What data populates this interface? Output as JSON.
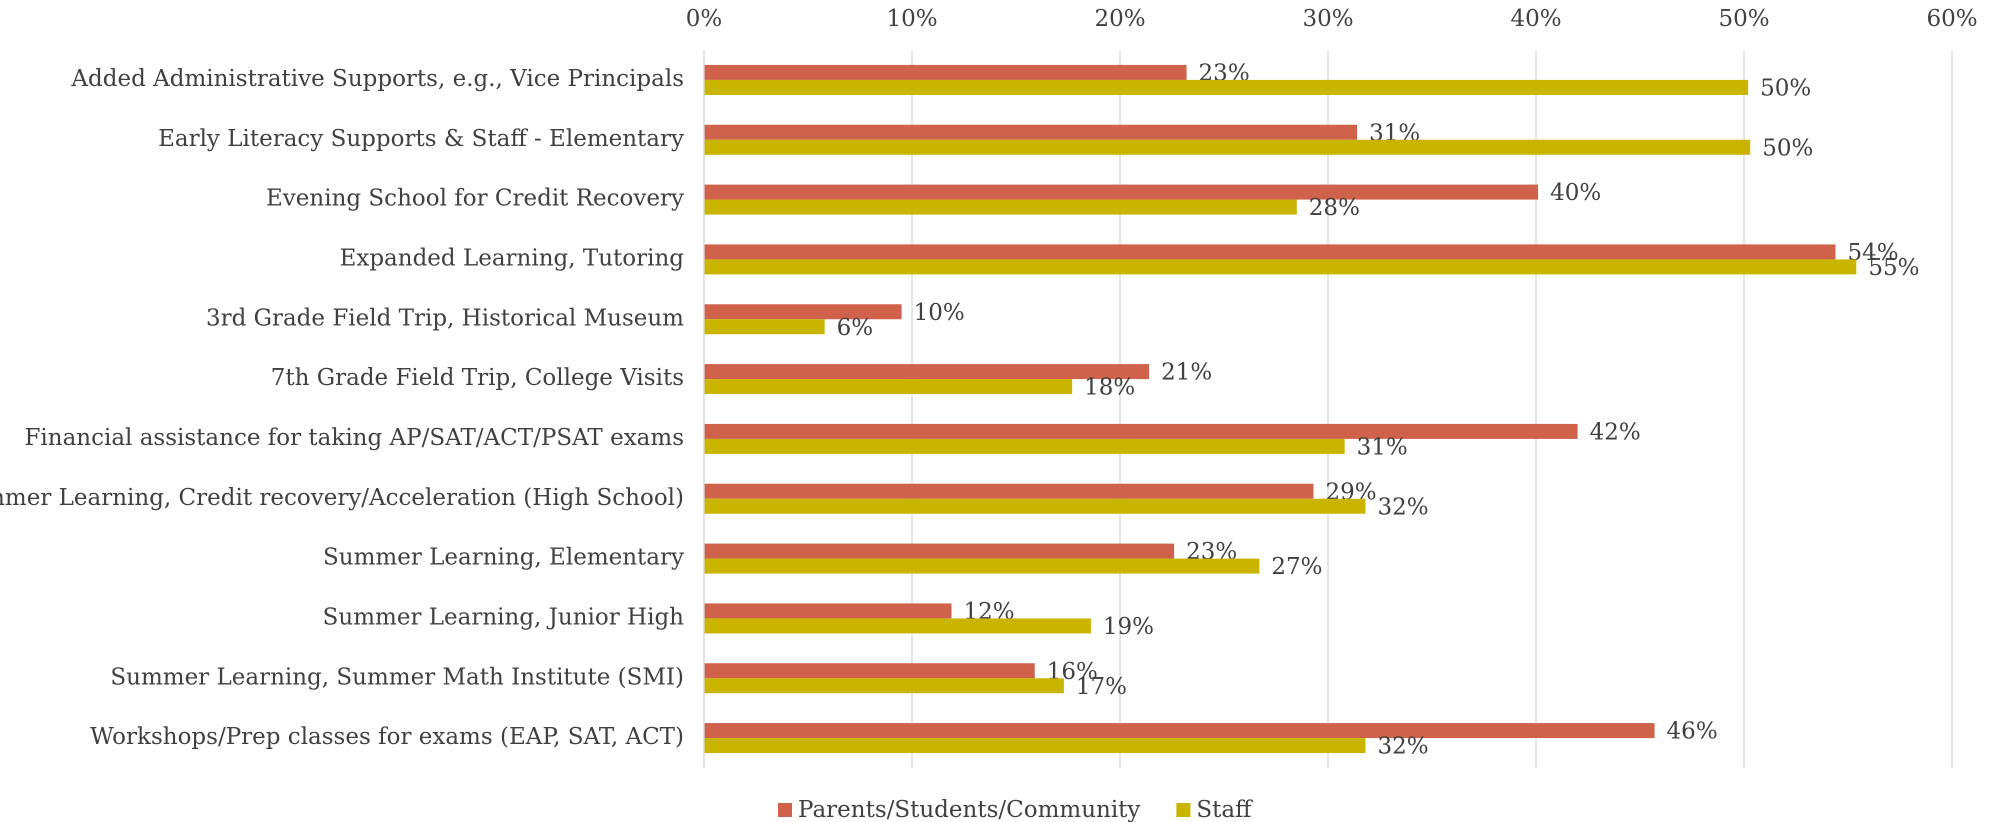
{
  "chart_data": {
    "type": "barh",
    "categories": [
      "Added Administrative Supports, e.g., Vice Principals",
      "Early Literacy Supports & Staff - Elementary",
      "Evening School for Credit Recovery",
      "Expanded Learning, Tutoring",
      "3rd Grade Field Trip, Historical Museum",
      "7th Grade Field Trip, College Visits",
      "Financial assistance for taking AP/SAT/ACT/PSAT exams",
      "Summer Learning, Credit recovery/Acceleration (High School)",
      "Summer Learning, Elementary",
      "Summer Learning, Junior High",
      "Summer Learning, Summer Math Institute (SMI)",
      "Workshops/Prep classes for exams (EAP, SAT, ACT)"
    ],
    "series": [
      {
        "name": "Parents/Students/Community",
        "color": "#d0614a",
        "values": [
          23.2,
          31.4,
          40.1,
          54.4,
          9.5,
          21.4,
          42.0,
          29.3,
          22.6,
          11.9,
          15.9,
          45.7
        ],
        "value_labels": [
          "23%",
          "31%",
          "40%",
          "54%",
          "10%",
          "21%",
          "42%",
          "29%",
          "23%",
          "12%",
          "16%",
          "46%"
        ]
      },
      {
        "name": "Staff",
        "color": "#c9b400",
        "values": [
          50.2,
          50.3,
          28.5,
          55.4,
          5.8,
          17.7,
          30.8,
          31.8,
          26.7,
          18.6,
          17.3,
          31.8
        ],
        "value_labels": [
          "50%",
          "50%",
          "28%",
          "55%",
          "6%",
          "18%",
          "31%",
          "32%",
          "27%",
          "19%",
          "17%",
          "32%"
        ]
      }
    ],
    "xlim": [
      0,
      60
    ],
    "xticks": [
      {
        "value": 0,
        "label": "0%"
      },
      {
        "value": 10,
        "label": "10%"
      },
      {
        "value": 20,
        "label": "20%"
      },
      {
        "value": 30,
        "label": "30%"
      },
      {
        "value": 40,
        "label": "40%"
      },
      {
        "value": 50,
        "label": "50%"
      },
      {
        "value": 60,
        "label": "60%"
      }
    ],
    "grid": true,
    "legend": "bottom"
  }
}
